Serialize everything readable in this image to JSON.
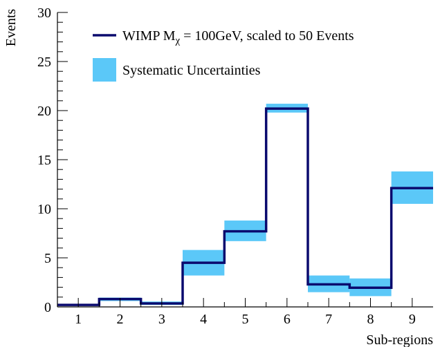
{
  "chart_data": {
    "type": "histogram",
    "xlabel": "Sub-regions",
    "ylabel": "Events",
    "xlim": [
      0.5,
      9.5
    ],
    "ylim": [
      0,
      30
    ],
    "categories": [
      "1",
      "2",
      "3",
      "4",
      "5",
      "6",
      "7",
      "8",
      "9"
    ],
    "y_ticks": [
      0,
      5,
      10,
      15,
      20,
      25,
      30
    ],
    "grid": false,
    "legend_position": "top-left",
    "series": [
      {
        "name": "WIMP M_χ = 100GeV, scaled to 50 Events",
        "legend": {
          "prefix": "WIMP M",
          "subscript": "χ",
          "suffix": " = 100GeV, scaled to 50 Events"
        },
        "color": "#0a0a6e",
        "style": "step",
        "values": [
          0.2,
          0.8,
          0.35,
          4.5,
          7.7,
          20.2,
          2.3,
          1.95,
          12.1
        ]
      },
      {
        "name": "Systematic Uncertainties",
        "legend": {
          "prefix": "Systematic Uncertainties"
        },
        "color": "#5bc8f8",
        "style": "band",
        "low": [
          0.15,
          0.6,
          0.2,
          3.2,
          6.7,
          19.8,
          1.5,
          1.1,
          10.5
        ],
        "high": [
          0.3,
          0.95,
          0.55,
          5.8,
          8.8,
          20.7,
          3.2,
          2.9,
          13.8
        ]
      }
    ]
  }
}
